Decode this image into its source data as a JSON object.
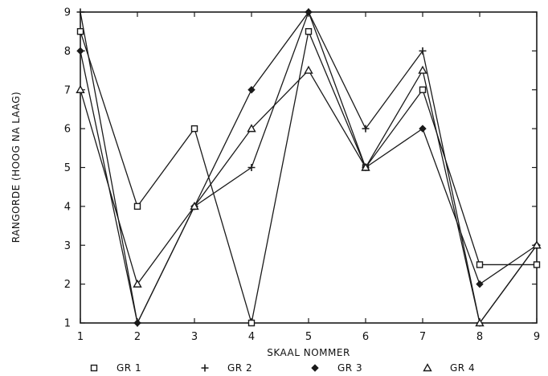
{
  "chart_data": {
    "type": "line",
    "title": "",
    "xlabel": "SKAAL NOMMER",
    "ylabel": "RANGORDE (HOOG NA LAAG)",
    "x": [
      1,
      2,
      3,
      4,
      5,
      6,
      7,
      8,
      9
    ],
    "xlim": [
      1,
      9
    ],
    "ylim": [
      1,
      9
    ],
    "xticks": [
      "1",
      "2",
      "3",
      "4",
      "5",
      "6",
      "7",
      "8",
      "9"
    ],
    "yticks": [
      "1",
      "2",
      "3",
      "4",
      "5",
      "6",
      "7",
      "8",
      "9"
    ],
    "grid": false,
    "legend_position": "bottom",
    "series": [
      {
        "name": "GR 1",
        "marker": "square",
        "values": [
          8.5,
          4,
          6,
          1,
          8.5,
          5,
          7,
          2.5,
          2.5
        ]
      },
      {
        "name": "GR 2",
        "marker": "plus",
        "values": [
          9,
          1,
          4,
          5,
          9,
          6,
          8,
          1,
          3
        ]
      },
      {
        "name": "GR 3",
        "marker": "diamond",
        "values": [
          8,
          1,
          4,
          7,
          9,
          5,
          6,
          2,
          3
        ]
      },
      {
        "name": "GR 4",
        "marker": "triangle",
        "values": [
          7,
          2,
          4,
          6,
          7.5,
          5,
          7.5,
          1,
          3
        ]
      }
    ],
    "colors": {
      "line": "#1a1a1a",
      "frame": "#1a1a1a"
    }
  }
}
